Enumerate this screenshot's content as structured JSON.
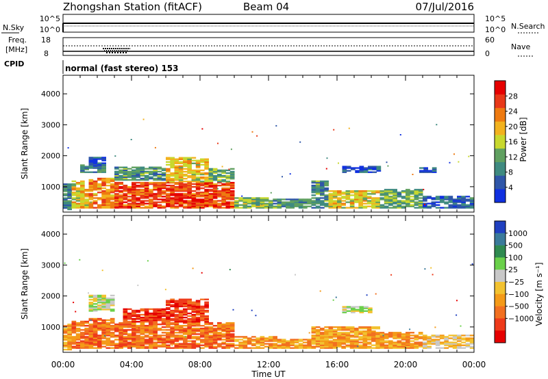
{
  "header": {
    "station": "Zhongshan Station (fitACF)",
    "beam": "Beam 04",
    "date": "07/Jul/2016"
  },
  "noise_panel": {
    "left_label": "N.Sky",
    "right_label": "N.Search",
    "left_ticks": [
      "10^5",
      "10^0"
    ],
    "right_ticks": [
      "10^5",
      "10^0"
    ]
  },
  "freq_panel": {
    "label_line1": "Freq.",
    "label_line2": "[MHz]",
    "right_label": "Nave",
    "left_ticks": [
      "18",
      "8"
    ],
    "right_ticks": [
      "60",
      "0"
    ]
  },
  "cpid_panel": {
    "label": "CPID",
    "mode_text": "normal (fast stereo) 153"
  },
  "x_axis": {
    "label": "Time UT",
    "ticks": [
      "00:00",
      "04:00",
      "08:00",
      "12:00",
      "16:00",
      "20:00",
      "00:00"
    ]
  },
  "chart_data": [
    {
      "type": "heatmap",
      "name": "power",
      "ylabel": "Slant Range [km]",
      "y_ticks": [
        1000,
        2000,
        3000,
        4000
      ],
      "ylim": [
        180,
        4600
      ],
      "xlim_hours": [
        0,
        24
      ],
      "colorbar": {
        "label": "Power [dB]",
        "ticks": [
          "4",
          "8",
          "12",
          "16",
          "20",
          "24",
          "28"
        ],
        "range": [
          0,
          32
        ],
        "colors": [
          "#1030e0",
          "#2f56a8",
          "#3f8a80",
          "#60a060",
          "#c8d82e",
          "#f2b21e",
          "#ee7a10",
          "#e83818",
          "#e60000"
        ]
      },
      "regions": [
        {
          "t0": 0.0,
          "t1": 0.5,
          "r0": 250,
          "r1": 1100,
          "v": 8
        },
        {
          "t0": 0.5,
          "t1": 1.5,
          "r0": 300,
          "r1": 1200,
          "v": 18
        },
        {
          "t0": 1.0,
          "t1": 2.5,
          "r0": 1450,
          "r1": 1700,
          "v": 8
        },
        {
          "t0": 1.5,
          "t1": 2.5,
          "r0": 1650,
          "r1": 1950,
          "v": 4
        },
        {
          "t0": 1.5,
          "t1": 3.0,
          "r0": 300,
          "r1": 1250,
          "v": 22
        },
        {
          "t0": 3.0,
          "t1": 10.0,
          "r0": 300,
          "r1": 1150,
          "v": 26
        },
        {
          "t0": 3.0,
          "t1": 6.0,
          "r0": 1200,
          "r1": 1650,
          "v": 10
        },
        {
          "t0": 6.0,
          "t1": 8.5,
          "r0": 1150,
          "r1": 1950,
          "v": 18
        },
        {
          "t0": 8.5,
          "t1": 10.0,
          "r0": 1150,
          "r1": 1600,
          "v": 12
        },
        {
          "t0": 10.0,
          "t1": 12.0,
          "r0": 300,
          "r1": 650,
          "v": 14
        },
        {
          "t0": 12.0,
          "t1": 14.5,
          "r0": 300,
          "r1": 600,
          "v": 10
        },
        {
          "t0": 14.5,
          "t1": 15.5,
          "r0": 300,
          "r1": 1200,
          "v": 10
        },
        {
          "t0": 15.5,
          "t1": 18.5,
          "r0": 300,
          "r1": 850,
          "v": 18
        },
        {
          "t0": 16.3,
          "t1": 18.5,
          "r0": 1450,
          "r1": 1650,
          "v": 5
        },
        {
          "t0": 18.5,
          "t1": 21.0,
          "r0": 300,
          "r1": 900,
          "v": 12
        },
        {
          "t0": 21.0,
          "t1": 24.0,
          "r0": 300,
          "r1": 700,
          "v": 6
        },
        {
          "t0": 20.8,
          "t1": 21.8,
          "r0": 1450,
          "r1": 1600,
          "v": 4
        }
      ]
    },
    {
      "type": "heatmap",
      "name": "velocity",
      "ylabel": "Slant Range [km]",
      "y_ticks": [
        1000,
        2000,
        3000,
        4000
      ],
      "ylim": [
        180,
        4600
      ],
      "xlim_hours": [
        0,
        24
      ],
      "colorbar": {
        "label": "Velocity [m s⁻¹]",
        "ticks": [
          "1000",
          "500",
          "100",
          "25",
          "−25",
          "−100",
          "−500",
          "−1000"
        ],
        "colors": [
          "#2040c0",
          "#3a7a9a",
          "#2f8a50",
          "#6ad04a",
          "#c8c8c8",
          "#f2c230",
          "#f49a18",
          "#f27020",
          "#ee3a1a",
          "#e60000"
        ]
      },
      "regions": [
        {
          "t0": 0.0,
          "t1": 0.5,
          "r0": 250,
          "r1": 1100,
          "v": 6
        },
        {
          "t0": 0.5,
          "t1": 1.5,
          "r0": 300,
          "r1": 1200,
          "v": 7
        },
        {
          "t0": 1.5,
          "t1": 3.0,
          "r0": 1500,
          "r1": 2000,
          "v": 4
        },
        {
          "t0": 1.5,
          "t1": 3.0,
          "r0": 300,
          "r1": 1250,
          "v": 7
        },
        {
          "t0": 3.0,
          "t1": 10.0,
          "r0": 300,
          "r1": 1150,
          "v": 7
        },
        {
          "t0": 3.5,
          "t1": 6.0,
          "r0": 1150,
          "r1": 1600,
          "v": 8
        },
        {
          "t0": 6.0,
          "t1": 8.5,
          "r0": 1150,
          "r1": 1900,
          "v": 8
        },
        {
          "t0": 10.0,
          "t1": 12.5,
          "r0": 300,
          "r1": 700,
          "v": 6
        },
        {
          "t0": 12.5,
          "t1": 14.5,
          "r0": 300,
          "r1": 600,
          "v": 6
        },
        {
          "t0": 14.5,
          "t1": 18.5,
          "r0": 300,
          "r1": 1000,
          "v": 6
        },
        {
          "t0": 16.3,
          "t1": 18.0,
          "r0": 1450,
          "r1": 1650,
          "v": 4
        },
        {
          "t0": 18.5,
          "t1": 21.0,
          "r0": 300,
          "r1": 800,
          "v": 6
        },
        {
          "t0": 21.0,
          "t1": 24.0,
          "r0": 300,
          "r1": 750,
          "v": 5
        }
      ]
    }
  ]
}
